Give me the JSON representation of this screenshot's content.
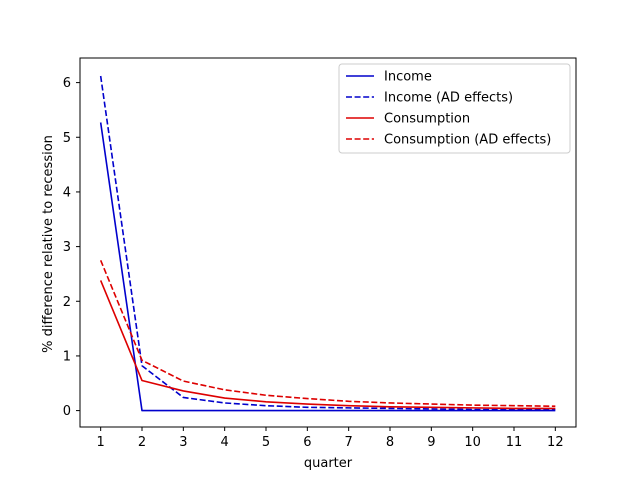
{
  "chart_data": {
    "type": "line",
    "title": "",
    "xlabel": "quarter",
    "ylabel": "% difference relative to recession",
    "x": [
      1,
      2,
      3,
      4,
      5,
      6,
      7,
      8,
      9,
      10,
      11,
      12
    ],
    "xlim": [
      0.5,
      12.5
    ],
    "ylim": [
      -0.3,
      6.45
    ],
    "xticks": [
      1,
      2,
      3,
      4,
      5,
      6,
      7,
      8,
      9,
      10,
      11,
      12
    ],
    "yticks": [
      0,
      1,
      2,
      3,
      4,
      5,
      6
    ],
    "grid": false,
    "legend_position": "top-right",
    "series": [
      {
        "name": "Income",
        "color": "#0000cc",
        "dash": "solid",
        "values": [
          5.27,
          0.0,
          0.0,
          0.0,
          0.0,
          0.0,
          0.0,
          0.0,
          0.0,
          0.0,
          0.0,
          0.0
        ]
      },
      {
        "name": "Income (AD effects)",
        "color": "#0000cc",
        "dash": "dashed",
        "values": [
          6.12,
          0.82,
          0.24,
          0.14,
          0.09,
          0.06,
          0.05,
          0.04,
          0.03,
          0.02,
          0.02,
          0.02
        ]
      },
      {
        "name": "Consumption",
        "color": "#dd0000",
        "dash": "solid",
        "values": [
          2.38,
          0.55,
          0.36,
          0.23,
          0.16,
          0.12,
          0.09,
          0.07,
          0.06,
          0.05,
          0.04,
          0.04
        ]
      },
      {
        "name": "Consumption (AD effects)",
        "color": "#dd0000",
        "dash": "dashed",
        "values": [
          2.75,
          0.92,
          0.54,
          0.38,
          0.28,
          0.22,
          0.17,
          0.14,
          0.12,
          0.1,
          0.09,
          0.08
        ]
      }
    ]
  }
}
